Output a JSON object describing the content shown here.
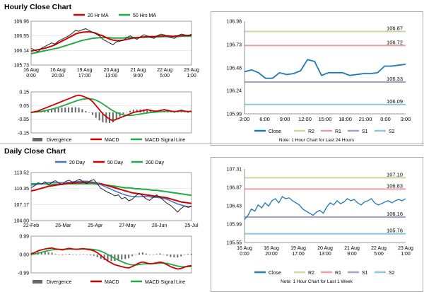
{
  "sections": {
    "hourly_title": "Hourly Close Chart",
    "daily_title": "Daily Close Chart"
  },
  "colors": {
    "price": "#222222",
    "ma_short": "#cc0000",
    "ma_long": "#22aa44",
    "ma_200": "#22aa44",
    "ma_20d": "#4472c4",
    "macd": "#cc0000",
    "signal": "#22aa44",
    "divergence": "#666666",
    "close_line": "#1f78b4",
    "r2": "#c5d9a0",
    "r1": "#e6a0a0",
    "s1": "#b09cc0",
    "s2": "#8ec5e0",
    "grid": "#dddddd"
  },
  "chart_data": [
    {
      "id": "hourly_price",
      "type": "line",
      "title": "Hourly Close Chart",
      "legend": [
        "20 Hr MA",
        "50 Hrs MA"
      ],
      "ylim": [
        105.73,
        106.96
      ],
      "yticks": [
        "106.96",
        "106.55",
        "106.14",
        "105.73"
      ],
      "ytick_values": [
        106.96,
        106.55,
        106.14,
        105.73
      ],
      "xticks": [
        "16 Aug\n0:00",
        "16 Aug\n20:00",
        "19 Aug\n17:00",
        "20 Aug\n13:00",
        "21 Aug\n9:00",
        "22 Aug\n5:00",
        "23 Aug\n1:00"
      ],
      "series": [
        {
          "name": "Close",
          "values": [
            106.2,
            106.15,
            106.1,
            106.2,
            106.25,
            106.3,
            106.35,
            106.32,
            106.4,
            106.45,
            106.5,
            106.55,
            106.62,
            106.7,
            106.68,
            106.72,
            106.75,
            106.7,
            106.65,
            106.6,
            106.55,
            106.45,
            106.4,
            106.35,
            106.3,
            106.38,
            106.4,
            106.42,
            106.5,
            106.55,
            106.5,
            106.45,
            106.52,
            106.58,
            106.55,
            106.5,
            106.48,
            106.55,
            106.6,
            106.58,
            106.52,
            106.5,
            106.48,
            106.55,
            106.6,
            106.58,
            106.55,
            106.6
          ]
        },
        {
          "name": "20 Hr MA",
          "values": [
            106.12,
            106.14,
            106.16,
            106.18,
            106.2,
            106.23,
            106.26,
            106.3,
            106.35,
            106.4,
            106.45,
            106.5,
            106.55,
            106.6,
            106.63,
            106.65,
            106.66,
            106.66,
            106.65,
            106.62,
            106.58,
            106.55,
            106.5,
            106.46,
            106.43,
            106.42,
            106.42,
            106.43,
            106.45,
            106.47,
            106.49,
            106.5,
            106.51,
            106.52,
            106.53,
            106.53,
            106.53,
            106.54,
            106.55,
            106.55,
            106.55,
            106.54,
            106.54,
            106.55,
            106.56,
            106.56,
            106.56,
            106.57
          ]
        },
        {
          "name": "50 Hrs MA",
          "values": [
            106.05,
            106.07,
            106.09,
            106.11,
            106.13,
            106.15,
            106.17,
            106.19,
            106.21,
            106.24,
            106.27,
            106.3,
            106.33,
            106.36,
            106.39,
            106.42,
            106.44,
            106.46,
            106.48,
            106.49,
            106.5,
            106.5,
            106.5,
            106.5,
            106.49,
            106.49,
            106.49,
            106.49,
            106.5,
            106.5,
            106.5,
            106.5,
            106.51,
            106.51,
            106.51,
            106.52,
            106.52,
            106.52,
            106.52,
            106.53,
            106.53,
            106.53,
            106.53,
            106.53,
            106.54,
            106.54,
            106.54,
            106.54
          ]
        }
      ]
    },
    {
      "id": "hourly_macd",
      "type": "line",
      "legend": [
        "Divergence",
        "MACD",
        "MACD Signal Line"
      ],
      "ylim": [
        -0.15,
        0.15
      ],
      "yticks": [
        "0.15",
        "0.05",
        "-0.05",
        "-0.15"
      ],
      "ytick_values": [
        0.15,
        0.05,
        -0.05,
        -0.15
      ],
      "series": [
        {
          "name": "MACD",
          "values": [
            0.0,
            0.005,
            0.01,
            0.02,
            0.03,
            0.04,
            0.05,
            0.06,
            0.07,
            0.08,
            0.09,
            0.1,
            0.11,
            0.12,
            0.125,
            0.12,
            0.11,
            0.1,
            0.08,
            0.05,
            0.02,
            -0.01,
            -0.03,
            -0.05,
            -0.06,
            -0.05,
            -0.04,
            -0.03,
            -0.02,
            -0.01,
            0.0,
            0.005,
            0.01,
            0.015,
            0.02,
            0.015,
            0.01,
            0.01,
            0.015,
            0.02,
            0.015,
            0.01,
            0.005,
            0.01,
            0.015,
            0.01,
            0.005,
            0.01
          ]
        },
        {
          "name": "MACD Signal Line",
          "values": [
            0.0,
            0.002,
            0.004,
            0.008,
            0.012,
            0.018,
            0.024,
            0.03,
            0.038,
            0.046,
            0.055,
            0.064,
            0.073,
            0.082,
            0.09,
            0.096,
            0.1,
            0.1,
            0.098,
            0.09,
            0.078,
            0.062,
            0.045,
            0.028,
            0.012,
            0.0,
            -0.01,
            -0.018,
            -0.022,
            -0.022,
            -0.02,
            -0.016,
            -0.012,
            -0.008,
            -0.004,
            -0.001,
            0.001,
            0.003,
            0.005,
            0.007,
            0.008,
            0.008,
            0.008,
            0.008,
            0.009,
            0.009,
            0.008,
            0.008
          ]
        },
        {
          "name": "Divergence",
          "values": [
            0.0,
            0.003,
            0.006,
            0.012,
            0.018,
            0.022,
            0.026,
            0.03,
            0.032,
            0.034,
            0.035,
            0.036,
            0.037,
            0.038,
            0.035,
            0.024,
            0.01,
            0.0,
            -0.018,
            -0.04,
            -0.058,
            -0.072,
            -0.075,
            -0.078,
            -0.072,
            -0.05,
            -0.03,
            -0.012,
            0.002,
            0.012,
            0.02,
            0.021,
            0.022,
            0.023,
            0.024,
            0.016,
            0.009,
            0.007,
            0.01,
            0.013,
            0.007,
            0.002,
            -0.003,
            0.002,
            0.006,
            0.001,
            -0.003,
            0.002
          ]
        }
      ]
    },
    {
      "id": "hourly_intraday",
      "type": "line",
      "ylim": [
        105.99,
        106.98
      ],
      "yticks": [
        "106.98",
        "106.73",
        "106.48",
        "106.24",
        "105.99"
      ],
      "ytick_values": [
        106.98,
        106.73,
        106.48,
        106.24,
        105.99
      ],
      "xticks": [
        "3:00",
        "6:00",
        "9:00",
        "12:00",
        "15:00",
        "18:00",
        "21:00",
        "0:00",
        "3:00"
      ],
      "levels": [
        {
          "name": "R2",
          "value": 106.87,
          "label": "106.87"
        },
        {
          "name": "R1",
          "value": 106.72,
          "label": "106.72"
        },
        {
          "name": "S1",
          "value": 106.33,
          "label": "106.33"
        },
        {
          "name": "S2",
          "value": 106.09,
          "label": "106.09"
        }
      ],
      "series": [
        {
          "name": "Close",
          "values": [
            106.44,
            106.46,
            106.43,
            106.37,
            106.37,
            106.43,
            106.41,
            106.42,
            106.45,
            106.57,
            106.55,
            106.4,
            106.43,
            106.43,
            106.43,
            106.4,
            106.41,
            106.42,
            106.42,
            106.43,
            106.5,
            106.5,
            106.51,
            106.52
          ]
        }
      ],
      "legend": [
        "Close",
        "R2",
        "R1",
        "S1",
        "S2"
      ],
      "note": "Note: 1 Hour Chart for Last 24 Hours"
    },
    {
      "id": "daily_price",
      "type": "line",
      "title": "Daily Close Chart",
      "legend": [
        "20 Day",
        "50 Day",
        "200 Day"
      ],
      "ylim": [
        104.0,
        113.52
      ],
      "yticks": [
        "113.52",
        "110.35",
        "107.17",
        "104.00"
      ],
      "ytick_values": [
        113.52,
        110.35,
        107.17,
        104.0
      ],
      "xticks": [
        "22-Feb",
        "26-Mar",
        "25-Apr",
        "27-May",
        "26-Jun",
        "25-Jul"
      ],
      "series": [
        {
          "name": "Close",
          "values": [
            110.5,
            110.9,
            111.5,
            111.2,
            111.7,
            111.1,
            111.6,
            111.9,
            111.4,
            111.2,
            111.8,
            112.0,
            111.5,
            111.9,
            112.2,
            111.6,
            111.3,
            111.9,
            112.1,
            111.3,
            110.4,
            110.0,
            109.6,
            109.3,
            108.9,
            109.1,
            108.3,
            108.6,
            107.9,
            108.2,
            108.9,
            109.4,
            108.9,
            108.3,
            108.0,
            108.6,
            109.1,
            108.6,
            108.0,
            107.4,
            107.0,
            106.4,
            105.7,
            106.4,
            106.9,
            106.6,
            106.8
          ]
        },
        {
          "name": "20 Day",
          "values": [
            111.0,
            111.1,
            111.2,
            111.3,
            111.4,
            111.5,
            111.5,
            111.5,
            111.5,
            111.5,
            111.6,
            111.6,
            111.7,
            111.7,
            111.8,
            111.8,
            111.8,
            111.7,
            111.6,
            111.4,
            111.1,
            110.8,
            110.5,
            110.2,
            109.9,
            109.6,
            109.3,
            109.1,
            108.9,
            108.8,
            108.7,
            108.7,
            108.8,
            108.8,
            108.7,
            108.6,
            108.6,
            108.5,
            108.4,
            108.2,
            107.9,
            107.6,
            107.3,
            107.1,
            106.9,
            106.8,
            106.8
          ]
        },
        {
          "name": "50 Day",
          "values": [
            109.9,
            110.0,
            110.2,
            110.4,
            110.6,
            110.8,
            110.9,
            111.0,
            111.1,
            111.2,
            111.3,
            111.4,
            111.4,
            111.5,
            111.5,
            111.6,
            111.6,
            111.6,
            111.5,
            111.4,
            111.3,
            111.1,
            110.9,
            110.7,
            110.5,
            110.3,
            110.1,
            109.9,
            109.7,
            109.5,
            109.4,
            109.3,
            109.2,
            109.1,
            109.0,
            108.9,
            108.8,
            108.7,
            108.6,
            108.5,
            108.3,
            108.1,
            107.9,
            107.7,
            107.6,
            107.5,
            107.4
          ]
        },
        {
          "name": "200 Day",
          "values": [
            111.3,
            111.3,
            111.3,
            111.3,
            111.3,
            111.2,
            111.2,
            111.2,
            111.2,
            111.2,
            111.3,
            111.3,
            111.3,
            111.3,
            111.3,
            111.3,
            111.3,
            111.3,
            111.3,
            111.2,
            111.2,
            111.1,
            111.0,
            110.9,
            110.8,
            110.7,
            110.6,
            110.5,
            110.5,
            110.4,
            110.3,
            110.3,
            110.2,
            110.2,
            110.1,
            110.0,
            110.0,
            109.9,
            109.8,
            109.7,
            109.6,
            109.5,
            109.4,
            109.3,
            109.2,
            109.1,
            109.0
          ]
        }
      ]
    },
    {
      "id": "daily_macd",
      "type": "line",
      "legend": [
        "Divergence",
        "MACD",
        "MACD Signal Line"
      ],
      "ylim": [
        -0.99,
        0.99
      ],
      "yticks": [
        "0.99",
        "0.00",
        "-0.99"
      ],
      "ytick_values": [
        0.99,
        0.0,
        -0.99
      ],
      "series": [
        {
          "name": "MACD",
          "values": [
            0.05,
            0.1,
            0.2,
            0.25,
            0.3,
            0.33,
            0.35,
            0.3,
            0.28,
            0.25,
            0.3,
            0.33,
            0.3,
            0.28,
            0.3,
            0.32,
            0.28,
            0.25,
            0.2,
            0.1,
            -0.05,
            -0.2,
            -0.35,
            -0.45,
            -0.55,
            -0.6,
            -0.65,
            -0.7,
            -0.72,
            -0.65,
            -0.55,
            -0.45,
            -0.4,
            -0.45,
            -0.5,
            -0.48,
            -0.45,
            -0.4,
            -0.45,
            -0.55,
            -0.65,
            -0.72,
            -0.78,
            -0.75,
            -0.68,
            -0.62,
            -0.6
          ]
        },
        {
          "name": "MACD Signal Line",
          "values": [
            0.0,
            0.03,
            0.07,
            0.12,
            0.17,
            0.21,
            0.25,
            0.27,
            0.28,
            0.28,
            0.28,
            0.29,
            0.29,
            0.29,
            0.29,
            0.3,
            0.3,
            0.29,
            0.27,
            0.24,
            0.18,
            0.1,
            0.0,
            -0.1,
            -0.2,
            -0.3,
            -0.38,
            -0.46,
            -0.52,
            -0.56,
            -0.56,
            -0.54,
            -0.51,
            -0.5,
            -0.5,
            -0.49,
            -0.48,
            -0.46,
            -0.46,
            -0.48,
            -0.52,
            -0.57,
            -0.62,
            -0.65,
            -0.66,
            -0.65,
            -0.64
          ]
        },
        {
          "name": "Divergence",
          "values": [
            0.05,
            0.07,
            0.13,
            0.13,
            0.13,
            0.12,
            0.1,
            0.03,
            0.0,
            -0.03,
            0.02,
            0.04,
            0.01,
            -0.01,
            0.01,
            0.02,
            -0.02,
            -0.04,
            -0.07,
            -0.14,
            -0.23,
            -0.3,
            -0.35,
            -0.35,
            -0.35,
            -0.3,
            -0.27,
            -0.24,
            -0.2,
            -0.09,
            0.01,
            0.09,
            0.11,
            0.05,
            0.0,
            0.01,
            0.03,
            0.06,
            0.01,
            -0.07,
            -0.13,
            -0.15,
            -0.16,
            -0.1,
            -0.02,
            0.03,
            0.04
          ]
        }
      ]
    },
    {
      "id": "daily_weekly",
      "type": "line",
      "ylim": [
        105.55,
        107.31
      ],
      "yticks": [
        "107.31",
        "106.87",
        "106.43",
        "105.99",
        "105.55"
      ],
      "ytick_values": [
        107.31,
        106.87,
        106.43,
        105.99,
        105.55
      ],
      "xticks": [
        "16 Aug\n0:00",
        "16 Aug\n20:00",
        "19 Aug\n17:00",
        "20 Aug\n13:00",
        "21 Aug\n9:00",
        "22 Aug\n5:00",
        "23 Aug\n1:00"
      ],
      "levels": [
        {
          "name": "R2",
          "value": 107.1,
          "label": "107.10"
        },
        {
          "name": "R1",
          "value": 106.83,
          "label": "106.83"
        },
        {
          "name": "S1",
          "value": 106.16,
          "label": "106.16"
        },
        {
          "name": "S2",
          "value": 105.76,
          "label": "105.76"
        }
      ],
      "series": [
        {
          "name": "Close",
          "values": [
            106.1,
            106.2,
            106.35,
            106.3,
            106.45,
            106.38,
            106.5,
            106.42,
            106.55,
            106.6,
            106.5,
            106.65,
            106.6,
            106.62,
            106.55,
            106.5,
            106.45,
            106.35,
            106.3,
            106.25,
            106.2,
            106.28,
            106.32,
            106.25,
            106.4,
            106.5,
            106.45,
            106.55,
            106.48,
            106.52,
            106.6,
            106.55,
            106.58,
            106.5,
            106.45,
            106.52,
            106.55,
            106.6,
            106.5,
            106.45,
            106.48,
            106.52,
            106.55,
            106.5,
            106.55,
            106.58,
            106.55,
            106.6
          ]
        }
      ],
      "legend": [
        "Close",
        "R2",
        "R1",
        "S1",
        "S2"
      ],
      "note": "Note: 1 Hour Chart for Last 1 Week"
    }
  ]
}
